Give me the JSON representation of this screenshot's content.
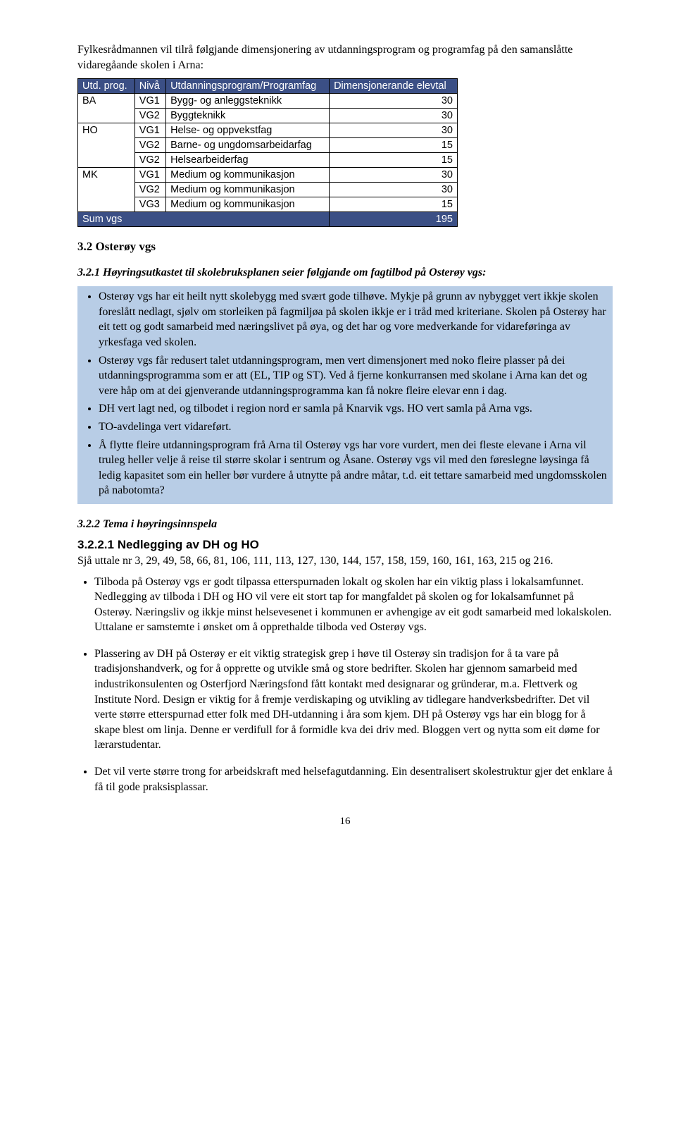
{
  "intro": "Fylkesrådmannen vil tilrå følgjande dimensjonering av utdanningsprogram og programfag på den samanslåtte vidaregåande skolen i Arna:",
  "table": {
    "headers": {
      "col1": "Utd. prog.",
      "col2": "Nivå",
      "col3": "Utdanningsprogram/Programfag",
      "col4": "Dimensjonerande elevtal"
    },
    "groups": [
      {
        "prog": "BA",
        "rows": [
          {
            "level": "VG1",
            "label": "Bygg- og anleggsteknikk",
            "val": "30"
          },
          {
            "level": "VG2",
            "label": "Byggteknikk",
            "val": "30"
          }
        ]
      },
      {
        "prog": "HO",
        "rows": [
          {
            "level": "VG1",
            "label": "Helse- og oppvekstfag",
            "val": "30"
          },
          {
            "level": "VG2",
            "label": "Barne- og ungdomsarbeidarfag",
            "val": "15"
          },
          {
            "level": "VG2",
            "label": "Helsearbeiderfag",
            "val": "15"
          }
        ]
      },
      {
        "prog": "MK",
        "rows": [
          {
            "level": "VG1",
            "label": "Medium og kommunikasjon",
            "val": "30"
          },
          {
            "level": "VG2",
            "label": "Medium og kommunikasjon",
            "val": "30"
          },
          {
            "level": "VG3",
            "label": "Medium og kommunikasjon",
            "val": "15"
          }
        ]
      }
    ],
    "sum": {
      "label": "Sum vgs",
      "val": "195"
    },
    "colors": {
      "header_bg": "#3b4f85",
      "header_fg": "#ffffff"
    }
  },
  "sec32": {
    "title": "3.2 Osterøy vgs",
    "sub1_title": "3.2.1 Høyringsutkastet til skolebruksplanen seier følgjande om fagtilbod på Osterøy vgs:",
    "blue_items": [
      "Osterøy vgs har eit heilt nytt skolebygg med svært gode tilhøve. Mykje på grunn av nybygget vert ikkje skolen foreslått nedlagt, sjølv om storleiken på fagmiljøa på skolen ikkje er i tråd med kriteriane. Skolen på Osterøy har eit tett og godt samarbeid med næringslivet på øya, og det har og vore medverkande for vidareføringa av yrkesfaga ved skolen.",
      "Osterøy vgs får redusert talet utdanningsprogram, men vert dimensjonert med noko fleire plasser på dei utdanningsprogramma som er att (EL, TIP og ST). Ved å fjerne konkurransen med skolane i Arna kan det og vere håp om at dei gjenverande utdanningsprogramma kan få nokre fleire elevar enn i dag.",
      "DH vert lagt ned, og tilbodet i region nord er samla på Knarvik vgs. HO vert samla på Arna vgs.",
      "TO-avdelinga vert vidareført.",
      "Å flytte fleire utdanningsprogram frå Arna til Osterøy vgs har vore vurdert, men dei fleste elevane i Arna vil truleg heller velje å reise til større skolar i sentrum og Åsane. Osterøy vgs vil med den føreslegne løysinga få ledig kapasitet som ein heller bør vurdere å utnytte på andre måtar, t.d. eit tettare samarbeid med ungdomsskolen på nabotomta?"
    ],
    "blue_bg": "#b8cde6",
    "sub2_title": "3.2.2 Tema i høyringsinnspela",
    "sub3_title": "3.2.2.1 Nedlegging av DH og HO",
    "refline": "Sjå uttale nr 3, 29, 49, 58, 66, 81, 106, 111, 113, 127, 130, 144, 157, 158, 159, 160, 161, 163, 215 og 216.",
    "items": [
      "Tilboda på Osterøy vgs er godt tilpassa etterspurnaden lokalt og skolen har ein viktig plass i lokalsamfunnet. Nedlegging av tilboda i DH og HO vil vere eit stort tap for mangfaldet på skolen og for lokalsamfunnet på Osterøy. Næringsliv og ikkje minst helsevesenet i kommunen er avhengige av eit godt samarbeid med lokalskolen. Uttalane er samstemte i ønsket om å opprethalde tilboda ved Osterøy vgs.",
      "Plassering av DH på Osterøy er eit viktig strategisk grep i høve til Osterøy sin tradisjon for å ta vare på tradisjonshandverk, og for å opprette og utvikle små og store bedrifter. Skolen har gjennom samarbeid med industrikonsulenten og Osterfjord Næringsfond fått kontakt med designarar og gründerar, m.a. Flettverk og Institute Nord. Design er viktig for å fremje verdiskaping og utvikling av tidlegare handverksbedrifter. Det vil verte større etterspurnad etter folk med DH-utdanning i åra som kjem. DH på Osterøy vgs har ein blogg for å skape blest om linja. Denne er verdifull for å formidle kva dei driv med. Bloggen vert og nytta som eit døme for lærarstudentar.",
      "Det vil verte større trong for arbeidskraft med helsefagutdanning. Ein desentralisert skolestruktur gjer det enklare å få til gode praksisplassar."
    ]
  },
  "pagenum": "16"
}
